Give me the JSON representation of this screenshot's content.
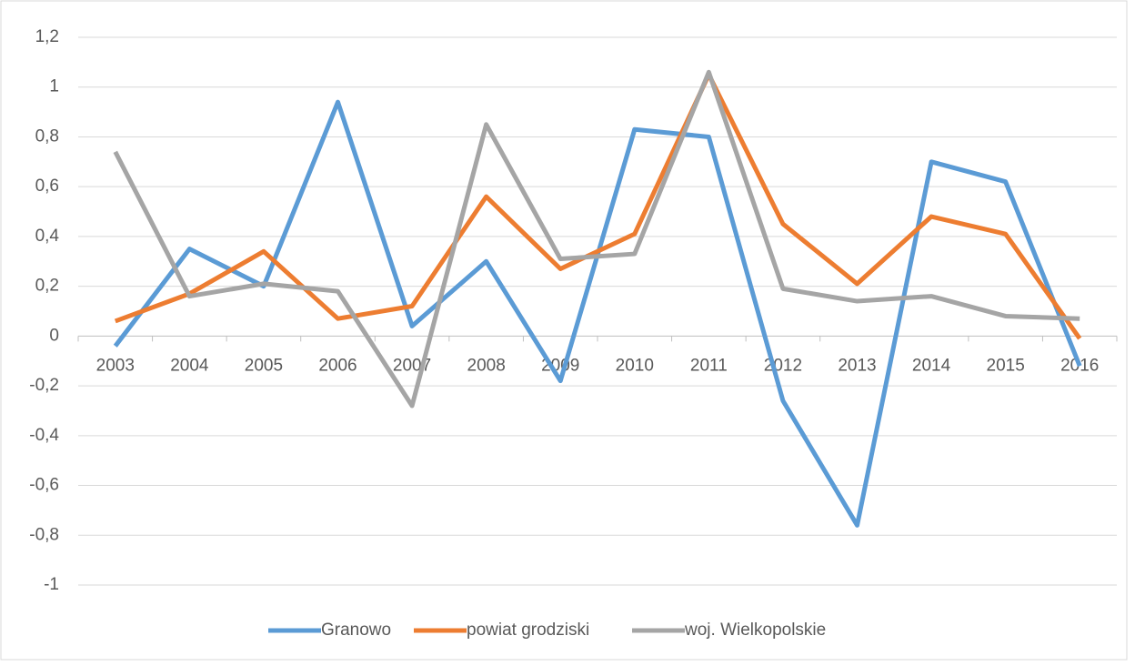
{
  "chart_data": {
    "type": "line",
    "categories": [
      "2003",
      "2004",
      "2005",
      "2006",
      "2007",
      "2008",
      "2009",
      "2010",
      "2011",
      "2012",
      "2013",
      "2014",
      "2015",
      "2016"
    ],
    "series": [
      {
        "name": "Granowo",
        "color": "#5b9bd5",
        "values": [
          -0.04,
          0.35,
          0.2,
          0.94,
          0.04,
          0.3,
          -0.18,
          0.83,
          0.8,
          -0.26,
          -0.76,
          0.7,
          0.62,
          -0.12
        ]
      },
      {
        "name": "powiat grodziski",
        "color": "#ed7d31",
        "values": [
          0.06,
          0.17,
          0.34,
          0.07,
          0.12,
          0.56,
          0.27,
          0.41,
          1.05,
          0.45,
          0.21,
          0.48,
          0.41,
          -0.01
        ]
      },
      {
        "name": "woj. Wielkopolskie",
        "color": "#a5a5a5",
        "values": [
          0.74,
          0.16,
          0.21,
          0.18,
          -0.28,
          0.85,
          0.31,
          0.33,
          1.06,
          0.19,
          0.14,
          0.16,
          0.08,
          0.07
        ]
      }
    ],
    "ylim": [
      -1,
      1.2
    ],
    "yticks": [
      {
        "value": 1.2,
        "label": "1,2"
      },
      1,
      {
        "value": 0.8,
        "label": "0,8"
      },
      {
        "value": 0.6,
        "label": "0,6"
      },
      {
        "value": 0.4,
        "label": "0,4"
      },
      {
        "value": 0.2,
        "label": "0,2"
      },
      0,
      {
        "value": -0.2,
        "label": "-0,2"
      },
      {
        "value": -0.4,
        "label": "-0,4"
      },
      {
        "value": -0.6,
        "label": "-0,6"
      },
      {
        "value": -0.8,
        "label": "-0,8"
      },
      -1
    ],
    "grid": true,
    "legend": "bottom"
  }
}
